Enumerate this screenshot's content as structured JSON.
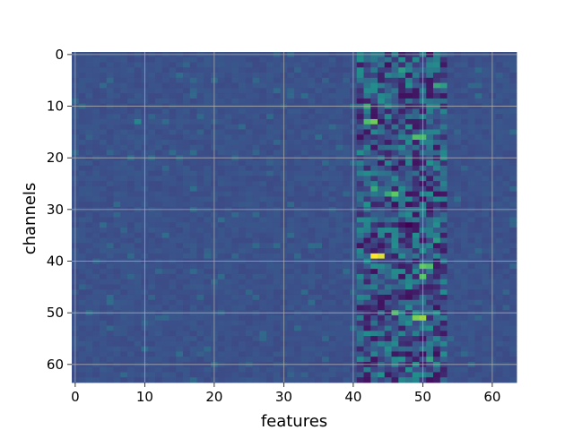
{
  "chart_data": {
    "type": "heatmap",
    "xlabel": "features",
    "ylabel": "channels",
    "x_range": [
      -0.5,
      63.5
    ],
    "y_range": [
      -0.5,
      63.5
    ],
    "y_inverted": true,
    "xticks": [
      0,
      10,
      20,
      30,
      40,
      50,
      60
    ],
    "yticks": [
      0,
      10,
      20,
      30,
      40,
      50,
      60
    ],
    "grid": true,
    "colormap": "viridis",
    "n_rows": 64,
    "n_cols": 64,
    "background_level": 0.25,
    "active_band": {
      "x_from": 41,
      "x_to": 53
    },
    "hotspots": [
      {
        "x": 43,
        "y": 39,
        "value": 1.0
      },
      {
        "x": 44,
        "y": 39,
        "value": 0.95
      },
      {
        "x": 43,
        "y": 13,
        "value": 0.78
      },
      {
        "x": 42,
        "y": 13,
        "value": 0.7
      },
      {
        "x": 50,
        "y": 51,
        "value": 0.85
      },
      {
        "x": 49,
        "y": 51,
        "value": 0.8
      },
      {
        "x": 50,
        "y": 41,
        "value": 0.75
      },
      {
        "x": 51,
        "y": 41,
        "value": 0.7
      },
      {
        "x": 50,
        "y": 43,
        "value": 0.72
      },
      {
        "x": 46,
        "y": 27,
        "value": 0.75
      },
      {
        "x": 45,
        "y": 27,
        "value": 0.6
      },
      {
        "x": 49,
        "y": 16,
        "value": 0.7
      },
      {
        "x": 50,
        "y": 16,
        "value": 0.68
      },
      {
        "x": 43,
        "y": 26,
        "value": 0.6
      },
      {
        "x": 46,
        "y": 50,
        "value": 0.7
      },
      {
        "x": 52,
        "y": 6,
        "value": 0.6
      },
      {
        "x": 53,
        "y": 6,
        "value": 0.55
      },
      {
        "x": 42,
        "y": 10,
        "value": 0.62
      },
      {
        "x": 47,
        "y": 3,
        "value": 0.55
      },
      {
        "x": 52,
        "y": 36,
        "value": 0.55
      },
      {
        "x": 9,
        "y": 13,
        "value": 0.45
      },
      {
        "x": 51,
        "y": 59,
        "value": 0.58
      },
      {
        "x": 47,
        "y": 59,
        "value": 0.5
      }
    ],
    "coldspots": [
      {
        "x": 47,
        "y": 8,
        "value": 0.05
      },
      {
        "x": 48,
        "y": 8,
        "value": 0.05
      },
      {
        "x": 48,
        "y": 33,
        "value": 0.0
      },
      {
        "x": 47,
        "y": 33,
        "value": 0.05
      },
      {
        "x": 48,
        "y": 29,
        "value": 0.05
      },
      {
        "x": 49,
        "y": 20,
        "value": 0.1
      },
      {
        "x": 51,
        "y": 63,
        "value": 0.05
      },
      {
        "x": 45,
        "y": 55,
        "value": 0.1
      }
    ]
  }
}
